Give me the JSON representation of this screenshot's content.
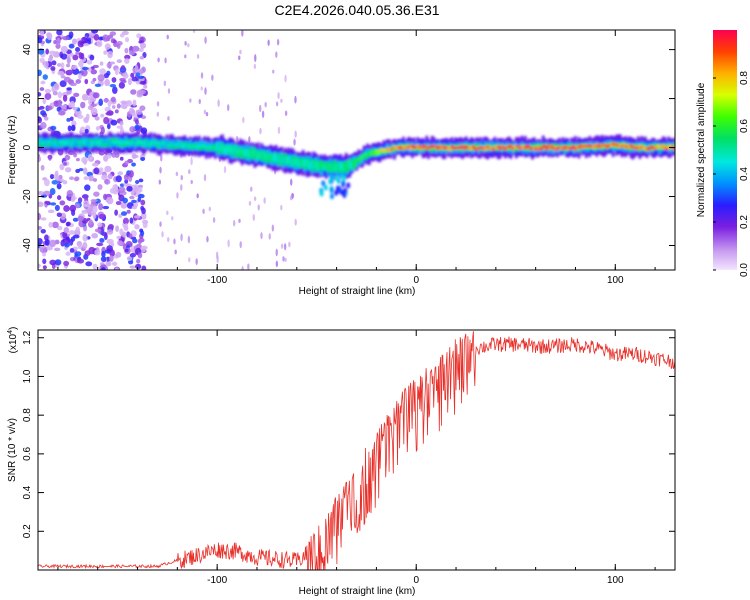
{
  "title": "C2E4.2026.040.05.36.E31",
  "chart_data": [
    {
      "type": "heatmap",
      "xlabel": "Height of straight line (km)",
      "ylabel": "Frequency (Hz)",
      "xlim": [
        -190,
        130
      ],
      "ylim": [
        -50,
        48
      ],
      "xticks": [
        -100,
        0,
        100
      ],
      "xtick_labels": [
        "-100",
        "0",
        "100"
      ],
      "yticks": [
        -40,
        -20,
        0,
        20,
        40
      ],
      "ytick_labels": [
        "-40",
        "-20",
        "0",
        "20",
        "40"
      ],
      "colorbar": {
        "label": "Normalized spectral amplitude",
        "range": [
          0,
          1
        ],
        "ticks": [
          0.0,
          0.2,
          0.4,
          0.6,
          0.8
        ],
        "tick_labels": [
          "0.0",
          "0.2",
          "0.4",
          "0.6",
          "0.8"
        ]
      },
      "ridge": {
        "description_points_km": [
          -190,
          -140,
          -120,
          -100,
          -80,
          -60,
          -45,
          -35,
          -25,
          -10,
          0,
          20,
          50,
          80,
          100,
          110,
          130
        ],
        "frequency_hz": [
          2,
          2,
          1,
          0,
          -3,
          -6,
          -8,
          -8,
          -3,
          0,
          0,
          0,
          0,
          0,
          1,
          0,
          0
        ],
        "peak_amplitude": [
          0.45,
          0.45,
          0.45,
          0.5,
          0.5,
          0.5,
          0.5,
          0.5,
          0.6,
          0.9,
          0.95,
          0.95,
          0.95,
          0.95,
          0.9,
          0.9,
          0.9
        ]
      },
      "noise_region_km": [
        -190,
        -136
      ]
    },
    {
      "type": "line",
      "xlabel": "Height of straight line (km)",
      "ylabel": "SNR (10 * v/v)",
      "y_multiplier_label": "(x10",
      "y_multiplier_exp": "4",
      "y_multiplier_close": ")",
      "xlim": [
        -190,
        130
      ],
      "ylim": [
        0,
        1.24
      ],
      "xticks": [
        -100,
        0,
        100
      ],
      "xtick_labels": [
        "-100",
        "0",
        "100"
      ],
      "yticks": [
        0.2,
        0.4,
        0.6,
        0.8,
        1.0,
        1.2
      ],
      "ytick_labels": [
        "0.2",
        "0.4",
        "0.6",
        "0.8",
        "1.0",
        "1.2"
      ],
      "color": "#e8302a",
      "series": [
        {
          "name": "SNR",
          "x": [
            -190,
            -170,
            -150,
            -130,
            -120,
            -110,
            -100,
            -90,
            -80,
            -70,
            -60,
            -50,
            -45,
            -40,
            -35,
            -30,
            -25,
            -20,
            -15,
            -10,
            -5,
            0,
            5,
            10,
            15,
            20,
            25,
            30,
            40,
            50,
            60,
            70,
            80,
            90,
            100,
            110,
            120,
            130
          ],
          "y": [
            0.02,
            0.02,
            0.02,
            0.02,
            0.05,
            0.08,
            0.11,
            0.1,
            0.07,
            0.06,
            0.05,
            0.12,
            0.2,
            0.3,
            0.38,
            0.45,
            0.55,
            0.62,
            0.72,
            0.8,
            0.85,
            0.9,
            0.95,
            1.0,
            1.05,
            1.1,
            1.13,
            1.15,
            1.17,
            1.17,
            1.16,
            1.16,
            1.17,
            1.15,
            1.12,
            1.12,
            1.1,
            1.08
          ]
        }
      ]
    }
  ]
}
